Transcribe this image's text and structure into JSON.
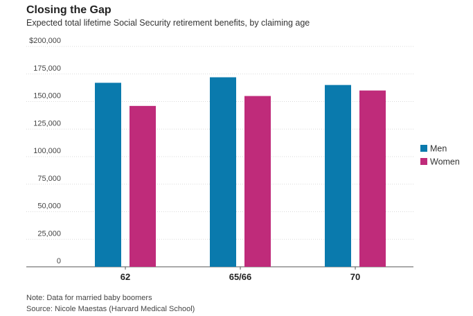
{
  "chart_data": {
    "type": "bar",
    "title": "Closing the Gap",
    "subtitle": "Expected total lifetime Social Security retirement benefits, by claiming age",
    "categories": [
      "62",
      "65/66",
      "70"
    ],
    "series": [
      {
        "name": "Men",
        "color": "#0a7aad",
        "values": [
          167000,
          172000,
          165000
        ]
      },
      {
        "name": "Women",
        "color": "#bf2b7a",
        "values": [
          146000,
          155000,
          160000
        ]
      }
    ],
    "ylim": [
      0,
      200000
    ],
    "yticks": [
      0,
      25000,
      50000,
      75000,
      100000,
      125000,
      150000,
      175000,
      200000
    ],
    "ytick_labels": [
      "0",
      "25,000",
      "50,000",
      "75,000",
      "100,000",
      "125,000",
      "150,000",
      "175,000",
      "$200,000"
    ],
    "xlabel": "",
    "ylabel": "",
    "grid": true,
    "legend_position": "right"
  },
  "notes": {
    "note": "Note: Data for married baby boomers",
    "source": "Source: Nicole Maestas (Harvard Medical School)"
  }
}
